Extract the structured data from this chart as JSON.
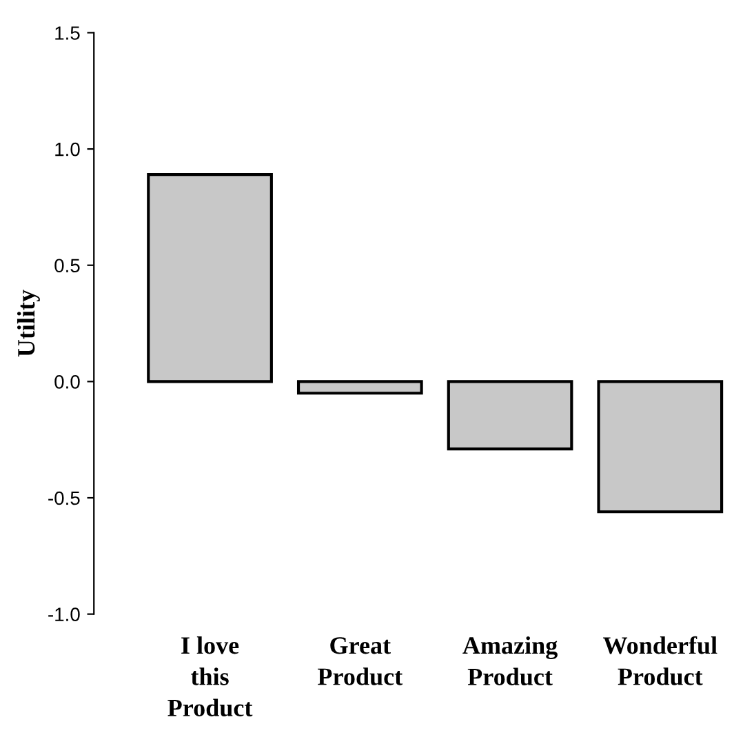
{
  "chart_data": {
    "type": "bar",
    "ylabel": "Utility",
    "categories": [
      "I love\nthis\nProduct",
      "Great\nProduct",
      "Amazing\nProduct",
      "Wonderful\nProduct"
    ],
    "values": [
      0.89,
      -0.05,
      -0.29,
      -0.56
    ],
    "color": "#c8c8c8",
    "ylim": [
      -1.0,
      1.5
    ],
    "yticks": [
      {
        "value": -1.0,
        "label": "-1.0"
      },
      {
        "value": -0.5,
        "label": "-0.5"
      },
      {
        "value": 0.0,
        "label": "0.0"
      },
      {
        "value": 0.5,
        "label": "0.5"
      },
      {
        "value": 1.0,
        "label": "1.0"
      },
      {
        "value": 1.5,
        "label": "1.5"
      }
    ],
    "grid": false
  }
}
